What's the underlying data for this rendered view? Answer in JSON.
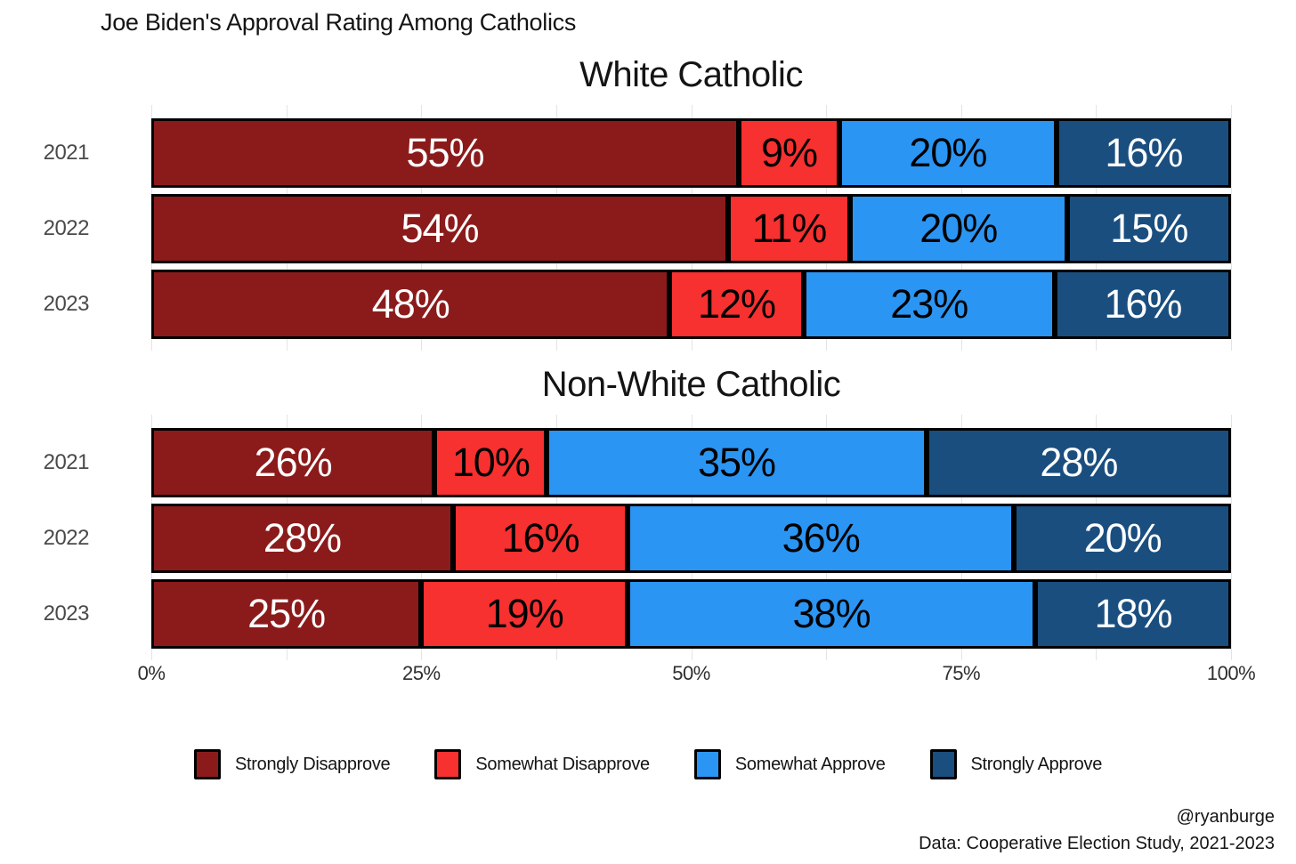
{
  "title": "Joe Biden's Approval Rating Among Catholics",
  "colors": {
    "strongly_disapprove": "#8B1B1B",
    "somewhat_disapprove": "#F73030",
    "somewhat_approve": "#2B95F3",
    "strongly_approve": "#1A4E7F",
    "gridline": "#e4e4e4",
    "bar_border": "#000000"
  },
  "axis": {
    "ticks": [
      {
        "label": "0%",
        "pct": 0
      },
      {
        "label": "25%",
        "pct": 25
      },
      {
        "label": "50%",
        "pct": 50
      },
      {
        "label": "75%",
        "pct": 75
      },
      {
        "label": "100%",
        "pct": 100
      }
    ],
    "minor_gridline_step_pct": 12.5
  },
  "legend": [
    {
      "label": "Strongly Disapprove",
      "color": "#8B1B1B"
    },
    {
      "label": "Somewhat Disapprove",
      "color": "#F73030"
    },
    {
      "label": "Somewhat Approve",
      "color": "#2B95F3"
    },
    {
      "label": "Strongly Approve",
      "color": "#1A4E7F"
    }
  ],
  "footer": {
    "handle": "@ryanburge",
    "source": "Data: Cooperative Election Study, 2021-2023"
  },
  "chart_data": [
    {
      "type": "bar",
      "variant": "stacked-horizontal",
      "title": "White Catholic",
      "categories": [
        "2021",
        "2022",
        "2023"
      ],
      "xlim": [
        0,
        100
      ],
      "grid": true,
      "legend_position": "bottom",
      "series": [
        {
          "name": "Strongly Disapprove",
          "color": "#8B1B1B",
          "label_color": "#ffffff",
          "values": [
            55,
            54,
            48
          ]
        },
        {
          "name": "Somewhat Disapprove",
          "color": "#F73030",
          "label_color": "#000000",
          "values": [
            9,
            11,
            12
          ]
        },
        {
          "name": "Somewhat Approve",
          "color": "#2B95F3",
          "label_color": "#000000",
          "values": [
            20,
            20,
            23
          ]
        },
        {
          "name": "Strongly Approve",
          "color": "#1A4E7F",
          "label_color": "#ffffff",
          "values": [
            16,
            15,
            16
          ]
        }
      ],
      "bar_labels": [
        [
          "55%",
          "9%",
          "20%",
          "16%"
        ],
        [
          "54%",
          "11%",
          "20%",
          "15%"
        ],
        [
          "48%",
          "12%",
          "23%",
          "16%"
        ]
      ]
    },
    {
      "type": "bar",
      "variant": "stacked-horizontal",
      "title": "Non-White Catholic",
      "categories": [
        "2021",
        "2022",
        "2023"
      ],
      "xlim": [
        0,
        100
      ],
      "grid": true,
      "legend_position": "bottom",
      "series": [
        {
          "name": "Strongly Disapprove",
          "color": "#8B1B1B",
          "label_color": "#ffffff",
          "values": [
            26,
            28,
            25
          ]
        },
        {
          "name": "Somewhat Disapprove",
          "color": "#F73030",
          "label_color": "#000000",
          "values": [
            10,
            16,
            19
          ]
        },
        {
          "name": "Somewhat Approve",
          "color": "#2B95F3",
          "label_color": "#000000",
          "values": [
            35,
            36,
            38
          ]
        },
        {
          "name": "Strongly Approve",
          "color": "#1A4E7F",
          "label_color": "#ffffff",
          "values": [
            28,
            20,
            18
          ]
        }
      ],
      "bar_labels": [
        [
          "26%",
          "10%",
          "35%",
          "28%"
        ],
        [
          "28%",
          "16%",
          "36%",
          "20%"
        ],
        [
          "25%",
          "19%",
          "38%",
          "18%"
        ]
      ]
    }
  ]
}
